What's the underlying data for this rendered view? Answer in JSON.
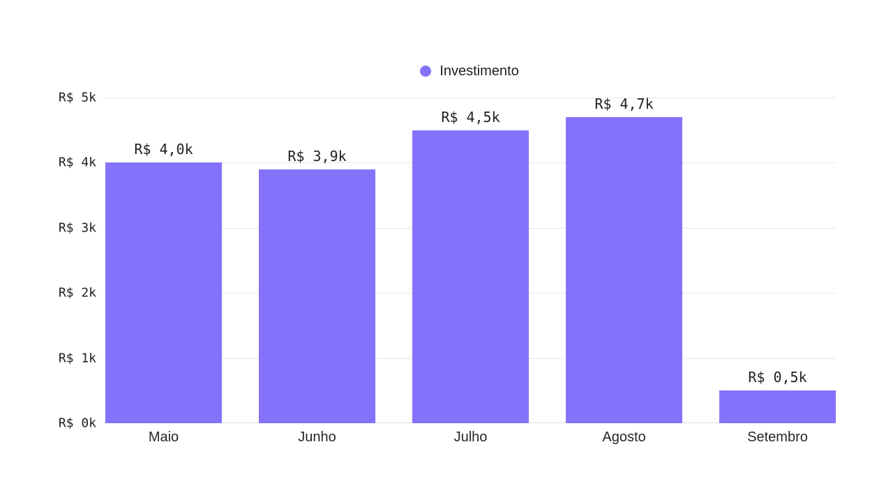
{
  "legend": {
    "label": "Investimento"
  },
  "chart_data": {
    "type": "bar",
    "title": "",
    "xlabel": "",
    "ylabel": "",
    "series_name": "Investimento",
    "categories": [
      "Maio",
      "Junho",
      "Julho",
      "Agosto",
      "Setembro"
    ],
    "values": [
      4000,
      3900,
      4500,
      4700,
      500
    ],
    "value_labels": [
      "R$ 4,0k",
      "R$ 3,9k",
      "R$ 4,5k",
      "R$ 4,7k",
      "R$ 0,5k"
    ],
    "ylim": [
      0,
      5000
    ],
    "ytick_values": [
      0,
      1000,
      2000,
      3000,
      4000,
      5000
    ],
    "ytick_labels": [
      "R$ 0k",
      "R$ 1k",
      "R$ 2k",
      "R$ 3k",
      "R$ 4k",
      "R$ 5k"
    ],
    "grid": true,
    "legend_position": "top-center",
    "currency": "R$",
    "bar_color": "#8473fa",
    "grid_color": "#e6e6e6",
    "baseline_color": "#dcdcdc",
    "text_color": "#1f1f1f"
  }
}
